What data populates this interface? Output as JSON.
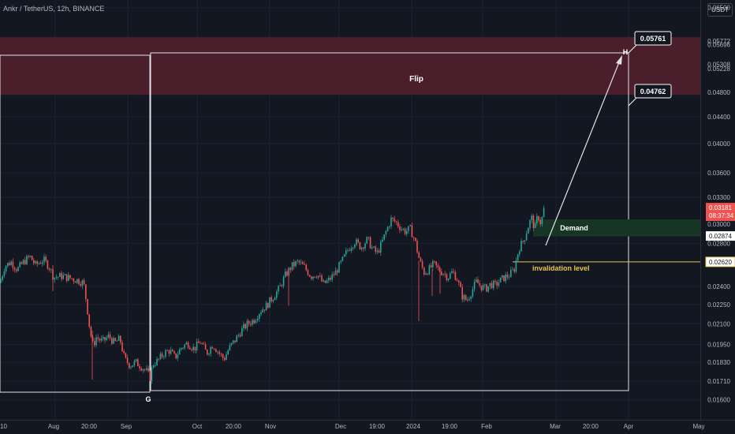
{
  "header": {
    "symbol_line": "Ankr / TetherUS, 12h, BINANCE",
    "currency": "USDT"
  },
  "colors": {
    "background": "#131722",
    "up": "#26a69a",
    "down": "#ef5350",
    "flip_zone": "#4a1f2b",
    "demand_zone": "#173524",
    "invalidation": "#e8c548",
    "box": "#e0e3eb"
  },
  "chart_data": {
    "type": "candlestick",
    "y_scale": "log",
    "ylim": [
      0.0155,
      0.0655
    ],
    "price_axis_ticks": [
      "0.06500",
      "0.05772",
      "0.05696",
      "0.05308",
      "0.05228",
      "0.04800",
      "0.04400",
      "0.04000",
      "0.03600",
      "0.03300",
      "0.03000",
      "0.02800",
      "0.02400",
      "0.02250",
      "0.02100",
      "0.01950",
      "0.01830",
      "0.01710",
      "0.01600"
    ],
    "time_axis_labels": [
      "10",
      "Aug",
      "20:00",
      "Sep",
      "Oct",
      "20:00",
      "Nov",
      "Dec",
      "19:00",
      "2024",
      "19:00",
      "Feb",
      "Mar",
      "20:00",
      "Apr",
      "May"
    ],
    "price_line_labels": [
      {
        "value": 0.03181,
        "text": "0.03181",
        "sub": "08:37:34"
      },
      {
        "value": 0.02874,
        "text": "0.02874"
      },
      {
        "value": 0.0262,
        "text": "0.02620"
      }
    ],
    "zones": {
      "flip": {
        "label": "Flip",
        "top": 0.0585,
        "bottom": 0.0476
      },
      "demand": {
        "label": "Demand",
        "top": 0.0305,
        "bottom": 0.0287
      }
    },
    "invalidation": {
      "label": "invalidation level",
      "value": 0.0262
    },
    "point_labels": {
      "G": "G",
      "H": "H"
    },
    "callouts": [
      {
        "text": "0.05761",
        "value": 0.05761
      },
      {
        "text": "0.04762",
        "value": 0.04762
      }
    ],
    "price_path": [
      [
        0,
        0.0243
      ],
      [
        6,
        0.0258
      ],
      [
        14,
        0.0262
      ],
      [
        22,
        0.0255
      ],
      [
        30,
        0.0262
      ],
      [
        38,
        0.0267
      ],
      [
        45,
        0.0259
      ],
      [
        55,
        0.0264
      ],
      [
        62,
        0.0258
      ],
      [
        68,
        0.0248
      ],
      [
        78,
        0.0249
      ],
      [
        90,
        0.0247
      ],
      [
        100,
        0.0245
      ],
      [
        106,
        0.0243
      ],
      [
        110,
        0.0225
      ],
      [
        114,
        0.0205
      ],
      [
        118,
        0.0194
      ],
      [
        122,
        0.02
      ],
      [
        130,
        0.0197
      ],
      [
        138,
        0.0201
      ],
      [
        145,
        0.0196
      ],
      [
        152,
        0.0199
      ],
      [
        158,
        0.0185
      ],
      [
        165,
        0.0181
      ],
      [
        172,
        0.0183
      ],
      [
        180,
        0.018
      ],
      [
        186,
        0.0177
      ],
      [
        190,
        0.0173
      ],
      [
        194,
        0.0182
      ],
      [
        200,
        0.0184
      ],
      [
        208,
        0.0189
      ],
      [
        215,
        0.0191
      ],
      [
        222,
        0.0186
      ],
      [
        230,
        0.0193
      ],
      [
        238,
        0.0196
      ],
      [
        246,
        0.0192
      ],
      [
        254,
        0.0197
      ],
      [
        262,
        0.0189
      ],
      [
        270,
        0.0195
      ],
      [
        278,
        0.0189
      ],
      [
        284,
        0.0185
      ],
      [
        290,
        0.0192
      ],
      [
        298,
        0.0198
      ],
      [
        306,
        0.0205
      ],
      [
        314,
        0.021
      ],
      [
        322,
        0.0213
      ],
      [
        330,
        0.022
      ],
      [
        338,
        0.0224
      ],
      [
        346,
        0.0231
      ],
      [
        354,
        0.0238
      ],
      [
        362,
        0.025
      ],
      [
        370,
        0.0258
      ],
      [
        378,
        0.0262
      ],
      [
        386,
        0.0257
      ],
      [
        394,
        0.0249
      ],
      [
        402,
        0.0251
      ],
      [
        410,
        0.0242
      ],
      [
        418,
        0.0246
      ],
      [
        426,
        0.0253
      ],
      [
        434,
        0.0263
      ],
      [
        442,
        0.0275
      ],
      [
        450,
        0.0282
      ],
      [
        458,
        0.0276
      ],
      [
        466,
        0.0284
      ],
      [
        472,
        0.0275
      ],
      [
        478,
        0.027
      ],
      [
        484,
        0.028
      ],
      [
        490,
        0.0293
      ],
      [
        496,
        0.0305
      ],
      [
        502,
        0.0302
      ],
      [
        508,
        0.0296
      ],
      [
        514,
        0.0292
      ],
      [
        520,
        0.0295
      ],
      [
        526,
        0.0283
      ],
      [
        532,
        0.0263
      ],
      [
        538,
        0.0252
      ],
      [
        544,
        0.0255
      ],
      [
        550,
        0.026
      ],
      [
        556,
        0.0255
      ],
      [
        562,
        0.0252
      ],
      [
        568,
        0.0248
      ],
      [
        574,
        0.0253
      ],
      [
        580,
        0.0246
      ],
      [
        586,
        0.0232
      ],
      [
        592,
        0.0228
      ],
      [
        598,
        0.0236
      ],
      [
        604,
        0.0244
      ],
      [
        610,
        0.024
      ],
      [
        616,
        0.0238
      ],
      [
        622,
        0.0242
      ],
      [
        628,
        0.0241
      ],
      [
        634,
        0.0245
      ],
      [
        640,
        0.0248
      ],
      [
        646,
        0.025
      ],
      [
        652,
        0.0255
      ],
      [
        658,
        0.0275
      ],
      [
        664,
        0.0283
      ],
      [
        670,
        0.0298
      ],
      [
        674,
        0.0307
      ],
      [
        678,
        0.0294
      ],
      [
        682,
        0.031
      ],
      [
        686,
        0.03
      ],
      [
        690,
        0.0318
      ]
    ]
  }
}
